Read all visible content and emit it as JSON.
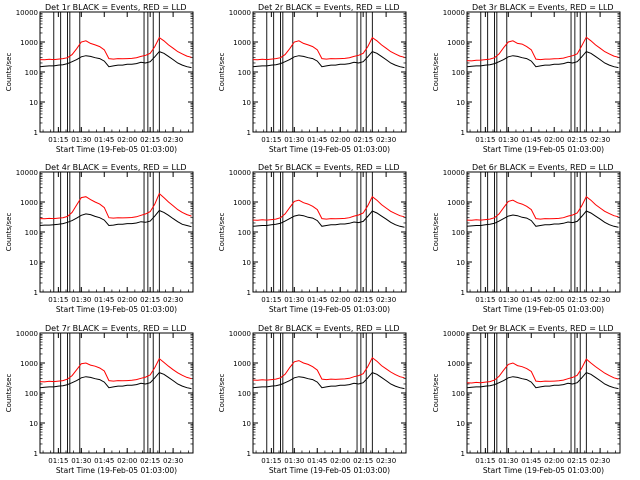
{
  "chart_data": {
    "type": "line",
    "layout": "3x3",
    "xlabel": "Start Time (19-Feb-05 01:03:00)",
    "ylabel": "Counts/sec",
    "yscale": "log",
    "ylim": [
      1,
      10000
    ],
    "y_ticks": [
      "1",
      "10",
      "100",
      "1000",
      "10000"
    ],
    "x_tick_labels": [
      "01:15",
      "01:30",
      "01:45",
      "02:00",
      "02:15",
      "02:30"
    ],
    "x_tick_minutes": [
      75,
      90,
      105,
      120,
      135,
      150
    ],
    "xlim_minutes": [
      63,
      163
    ],
    "grid": false,
    "series_colors": {
      "events": "#000000",
      "lld": "#ff0000"
    },
    "vertical_markers_minutes": [
      72,
      76.5,
      81,
      82.5,
      89,
      131,
      133.5,
      137,
      141
    ],
    "x": [
      63,
      66,
      69,
      72,
      75,
      78,
      81,
      84,
      87,
      90,
      93,
      96,
      99,
      102,
      105,
      108,
      111,
      114,
      117,
      120,
      123,
      126,
      129,
      132,
      135,
      138,
      141,
      144,
      147,
      150,
      153,
      156,
      159,
      162
    ],
    "panels": [
      {
        "title": "Det 1r BLACK = Events, RED = LLD",
        "events": [
          150,
          155,
          160,
          160,
          170,
          175,
          190,
          220,
          260,
          320,
          350,
          330,
          300,
          280,
          230,
          150,
          160,
          170,
          170,
          180,
          180,
          190,
          210,
          200,
          220,
          320,
          480,
          420,
          330,
          260,
          200,
          170,
          150,
          140
        ],
        "lld": [
          260,
          255,
          265,
          260,
          270,
          280,
          300,
          380,
          600,
          1000,
          1100,
          900,
          800,
          700,
          550,
          280,
          270,
          280,
          275,
          280,
          285,
          300,
          330,
          360,
          420,
          700,
          1400,
          1100,
          800,
          620,
          480,
          400,
          340,
          310
        ]
      },
      {
        "title": "Det 2r BLACK = Events, RED = LLD",
        "events": [
          150,
          155,
          160,
          160,
          170,
          175,
          190,
          220,
          260,
          320,
          350,
          330,
          300,
          280,
          230,
          150,
          160,
          170,
          170,
          180,
          180,
          190,
          210,
          200,
          220,
          320,
          480,
          420,
          330,
          260,
          200,
          170,
          150,
          140
        ],
        "lld": [
          260,
          255,
          265,
          260,
          270,
          280,
          300,
          380,
          600,
          1000,
          1100,
          900,
          800,
          700,
          550,
          280,
          270,
          280,
          275,
          280,
          285,
          300,
          330,
          360,
          420,
          700,
          1400,
          1100,
          800,
          620,
          480,
          400,
          340,
          310
        ]
      },
      {
        "title": "Det 3r BLACK = Events, RED = LLD",
        "events": [
          150,
          155,
          160,
          160,
          170,
          175,
          190,
          220,
          260,
          320,
          350,
          330,
          300,
          280,
          230,
          150,
          160,
          170,
          170,
          180,
          180,
          190,
          210,
          200,
          220,
          320,
          480,
          420,
          330,
          260,
          200,
          170,
          150,
          140
        ],
        "lld": [
          240,
          235,
          245,
          250,
          260,
          270,
          300,
          400,
          650,
          1000,
          1100,
          900,
          850,
          700,
          550,
          270,
          260,
          270,
          270,
          275,
          280,
          290,
          320,
          350,
          400,
          750,
          1450,
          1100,
          800,
          620,
          480,
          400,
          340,
          310
        ]
      },
      {
        "title": "Det 4r BLACK = Events, RED = LLD",
        "events": [
          165,
          170,
          170,
          175,
          180,
          190,
          210,
          240,
          290,
          360,
          400,
          380,
          330,
          300,
          250,
          165,
          170,
          180,
          180,
          190,
          190,
          200,
          220,
          210,
          230,
          340,
          520,
          450,
          360,
          280,
          220,
          180,
          165,
          150
        ],
        "lld": [
          280,
          275,
          285,
          280,
          290,
          300,
          330,
          450,
          800,
          1400,
          1500,
          1200,
          1000,
          850,
          650,
          300,
          290,
          300,
          295,
          300,
          305,
          320,
          360,
          400,
          480,
          850,
          1900,
          1400,
          1000,
          750,
          560,
          450,
          380,
          340
        ]
      },
      {
        "title": "Det 5r BLACK = Events, RED = LLD",
        "events": [
          155,
          160,
          165,
          165,
          175,
          180,
          195,
          230,
          280,
          340,
          370,
          350,
          310,
          290,
          240,
          155,
          165,
          175,
          175,
          185,
          185,
          195,
          215,
          205,
          225,
          330,
          500,
          430,
          340,
          270,
          210,
          175,
          155,
          145
        ],
        "lld": [
          250,
          245,
          255,
          250,
          260,
          270,
          300,
          400,
          650,
          1050,
          1150,
          950,
          850,
          720,
          560,
          280,
          270,
          280,
          275,
          280,
          285,
          300,
          340,
          370,
          430,
          750,
          1500,
          1150,
          820,
          630,
          490,
          410,
          350,
          320
        ]
      },
      {
        "title": "Det 6r BLACK = Events, RED = LLD",
        "events": [
          155,
          160,
          165,
          165,
          175,
          180,
          195,
          230,
          280,
          340,
          370,
          350,
          310,
          290,
          240,
          155,
          165,
          175,
          175,
          185,
          185,
          195,
          215,
          205,
          225,
          330,
          500,
          430,
          340,
          270,
          210,
          175,
          155,
          145
        ],
        "lld": [
          250,
          245,
          255,
          250,
          260,
          270,
          300,
          400,
          650,
          1050,
          1150,
          950,
          850,
          720,
          560,
          280,
          270,
          280,
          275,
          280,
          285,
          300,
          340,
          370,
          430,
          750,
          1500,
          1150,
          820,
          630,
          490,
          410,
          350,
          320
        ]
      },
      {
        "title": "Det 7r BLACK = Events, RED = LLD",
        "events": [
          150,
          155,
          160,
          160,
          170,
          175,
          190,
          220,
          260,
          320,
          350,
          330,
          300,
          280,
          230,
          150,
          160,
          170,
          170,
          180,
          180,
          190,
          210,
          200,
          220,
          320,
          480,
          420,
          330,
          260,
          200,
          170,
          150,
          140
        ],
        "lld": [
          240,
          235,
          245,
          240,
          250,
          260,
          290,
          380,
          600,
          950,
          1000,
          850,
          780,
          680,
          540,
          260,
          250,
          260,
          255,
          260,
          265,
          280,
          310,
          340,
          400,
          700,
          1400,
          1050,
          780,
          600,
          470,
          390,
          330,
          300
        ]
      },
      {
        "title": "Det 8r BLACK = Events, RED = LLD",
        "events": [
          150,
          155,
          160,
          160,
          170,
          175,
          190,
          220,
          260,
          320,
          350,
          330,
          300,
          280,
          230,
          150,
          160,
          170,
          170,
          180,
          180,
          190,
          210,
          200,
          220,
          320,
          480,
          420,
          330,
          260,
          200,
          170,
          150,
          140
        ],
        "lld": [
          270,
          265,
          275,
          270,
          280,
          290,
          320,
          420,
          700,
          1100,
          1200,
          1000,
          900,
          750,
          580,
          290,
          280,
          290,
          285,
          290,
          295,
          310,
          350,
          380,
          440,
          760,
          1500,
          1150,
          820,
          640,
          500,
          410,
          350,
          320
        ]
      },
      {
        "title": "Det 9r BLACK = Events, RED = LLD",
        "events": [
          150,
          155,
          160,
          160,
          170,
          175,
          190,
          220,
          260,
          320,
          350,
          330,
          300,
          280,
          230,
          150,
          160,
          170,
          170,
          180,
          180,
          190,
          210,
          200,
          220,
          320,
          480,
          420,
          330,
          260,
          200,
          170,
          150,
          140
        ],
        "lld": [
          220,
          215,
          225,
          220,
          230,
          240,
          270,
          360,
          580,
          900,
          1000,
          820,
          750,
          650,
          520,
          250,
          240,
          250,
          245,
          250,
          255,
          270,
          300,
          330,
          390,
          680,
          1350,
          1000,
          760,
          590,
          460,
          380,
          320,
          290
        ]
      }
    ]
  }
}
